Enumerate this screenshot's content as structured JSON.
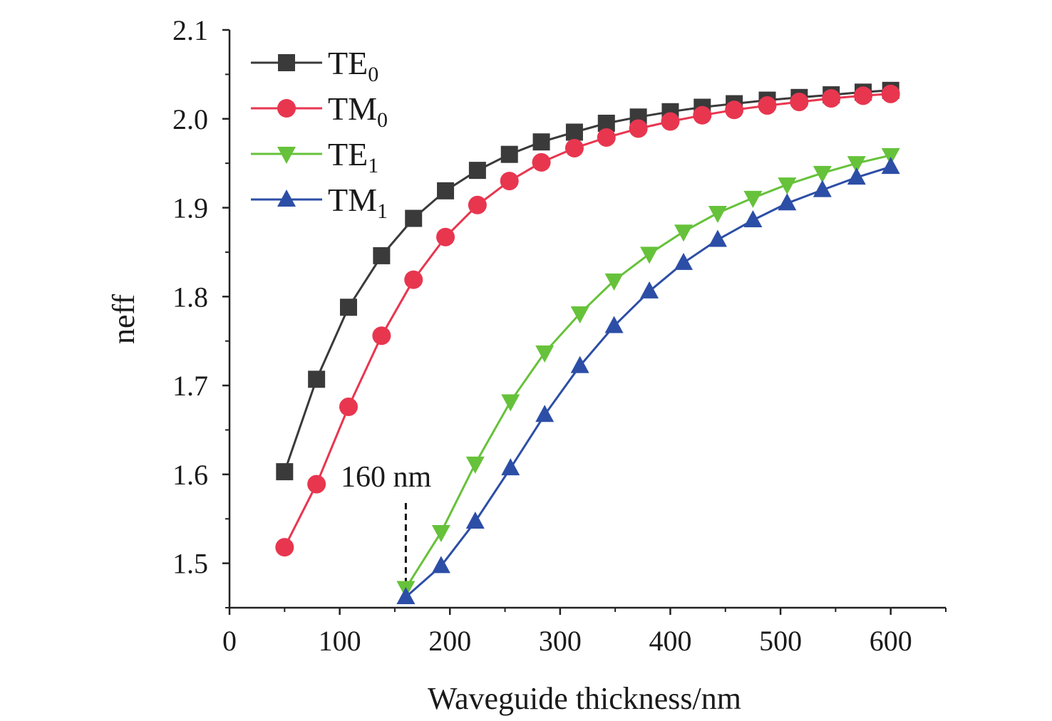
{
  "chart_data": {
    "type": "line",
    "title": "",
    "xlabel": "Waveguide thickness/nm",
    "ylabel": "neff",
    "xlim": [
      0,
      650
    ],
    "ylim": [
      1.45,
      2.1
    ],
    "xticks": [
      0,
      100,
      200,
      300,
      400,
      500,
      600
    ],
    "xtick_labels": [
      "0",
      "100",
      "200",
      "300",
      "400",
      "500",
      "600"
    ],
    "yticks": [
      1.5,
      1.6,
      1.7,
      1.8,
      1.9,
      2.0,
      2.1
    ],
    "ytick_labels": [
      "1.5",
      "1.6",
      "1.7",
      "1.8",
      "1.9",
      "2.0",
      "2.1"
    ],
    "grid": false,
    "legend_position": "top-left",
    "annotation": {
      "text": "160 nm",
      "x": 160
    },
    "series": [
      {
        "name": "TE0",
        "label_main": "TE",
        "label_sub": "0",
        "color": "#3a3a3a",
        "marker": "square",
        "x": [
          50,
          79,
          108,
          138,
          167,
          196,
          225,
          254,
          283,
          313,
          342,
          371,
          400,
          429,
          458,
          488,
          517,
          546,
          575,
          600
        ],
        "y": [
          1.603,
          1.707,
          1.788,
          1.846,
          1.888,
          1.919,
          1.942,
          1.96,
          1.974,
          1.985,
          1.995,
          2.002,
          2.008,
          2.013,
          2.017,
          2.021,
          2.024,
          2.027,
          2.03,
          2.032
        ]
      },
      {
        "name": "TM0",
        "label_main": "TM",
        "label_sub": "0",
        "color": "#e8364f",
        "marker": "circle",
        "x": [
          50,
          79,
          108,
          138,
          167,
          196,
          225,
          254,
          283,
          313,
          342,
          371,
          400,
          429,
          458,
          488,
          517,
          546,
          575,
          600
        ],
        "y": [
          1.518,
          1.589,
          1.676,
          1.756,
          1.819,
          1.867,
          1.903,
          1.93,
          1.951,
          1.967,
          1.979,
          1.989,
          1.997,
          2.004,
          2.01,
          2.015,
          2.019,
          2.023,
          2.026,
          2.028
        ]
      },
      {
        "name": "TE1",
        "label_main": "TE",
        "label_sub": "1",
        "color": "#66c23a",
        "marker": "triangle-down",
        "x": [
          160,
          192,
          223,
          255,
          286,
          318,
          349,
          381,
          412,
          443,
          475,
          506,
          538,
          569,
          600
        ],
        "y": [
          1.472,
          1.535,
          1.612,
          1.682,
          1.737,
          1.781,
          1.818,
          1.848,
          1.873,
          1.894,
          1.911,
          1.926,
          1.939,
          1.95,
          1.959
        ]
      },
      {
        "name": "TM1",
        "label_main": "TM",
        "label_sub": "1",
        "color": "#2c4ea6",
        "marker": "triangle-up",
        "x": [
          160,
          192,
          223,
          255,
          286,
          318,
          349,
          381,
          412,
          443,
          475,
          506,
          538,
          569,
          600
        ],
        "y": [
          1.462,
          1.497,
          1.547,
          1.607,
          1.667,
          1.722,
          1.767,
          1.806,
          1.838,
          1.864,
          1.886,
          1.905,
          1.92,
          1.934,
          1.946
        ]
      }
    ]
  }
}
